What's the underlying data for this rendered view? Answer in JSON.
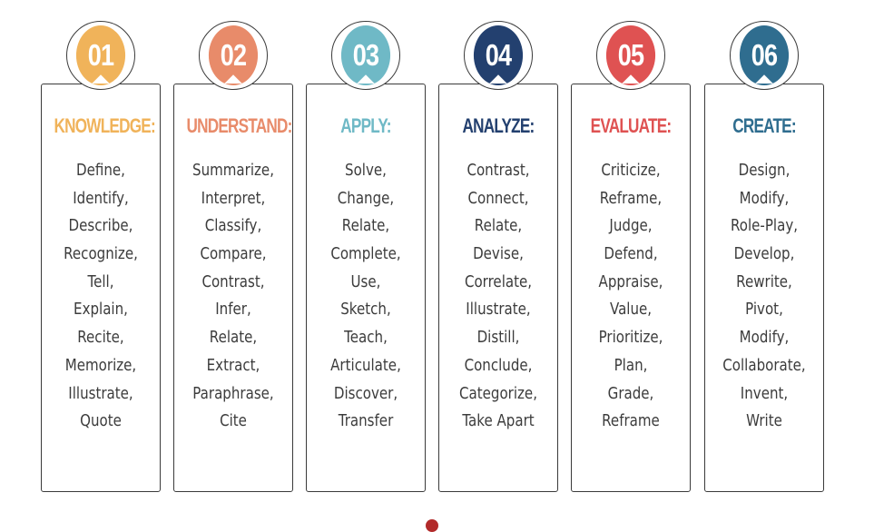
{
  "columns": [
    {
      "number": "01",
      "title": "KNOWLEDGE:",
      "color": "#f0b35a",
      "verbs": [
        "Define,",
        "Identify,",
        "Describe,",
        "Recognize,",
        "Tell,",
        "Explain,",
        "Recite,",
        "Memorize,",
        "Illustrate,",
        "Quote"
      ]
    },
    {
      "number": "02",
      "title": "UNDERSTAND:",
      "color": "#e88b6a",
      "verbs": [
        "Summarize,",
        "Interpret,",
        "Classify,",
        "Compare,",
        "Contrast,",
        "Infer,",
        "Relate,",
        "Extract,",
        "Paraphrase,",
        "Cite"
      ]
    },
    {
      "number": "03",
      "title": "APPLY:",
      "color": "#6fb9c6",
      "verbs": [
        "Solve,",
        "Change,",
        "Relate,",
        "Complete,",
        "Use,",
        "Sketch,",
        "Teach,",
        "Articulate,",
        "Discover,",
        "Transfer"
      ]
    },
    {
      "number": "04",
      "title": "ANALYZE:",
      "color": "#23406f",
      "verbs": [
        "Contrast,",
        "Connect,",
        "Relate,",
        "Devise,",
        "Correlate,",
        "Illustrate,",
        "Distill,",
        "Conclude,",
        "Categorize,",
        "Take Apart"
      ]
    },
    {
      "number": "05",
      "title": "EVALUATE:",
      "color": "#df5252",
      "verbs": [
        "Criticize,",
        "Reframe,",
        "Judge,",
        "Defend,",
        "Appraise,",
        "Value,",
        "Prioritize,",
        "Plan,",
        "Grade,",
        "Reframe"
      ]
    },
    {
      "number": "06",
      "title": "CREATE:",
      "color": "#2f6d8f",
      "verbs": [
        "Design,",
        "Modify,",
        "Role-Play,",
        "Develop,",
        "Rewrite,",
        "Pivot,",
        "Modify,",
        "Collaborate,",
        "Invent,",
        "Write"
      ]
    }
  ]
}
